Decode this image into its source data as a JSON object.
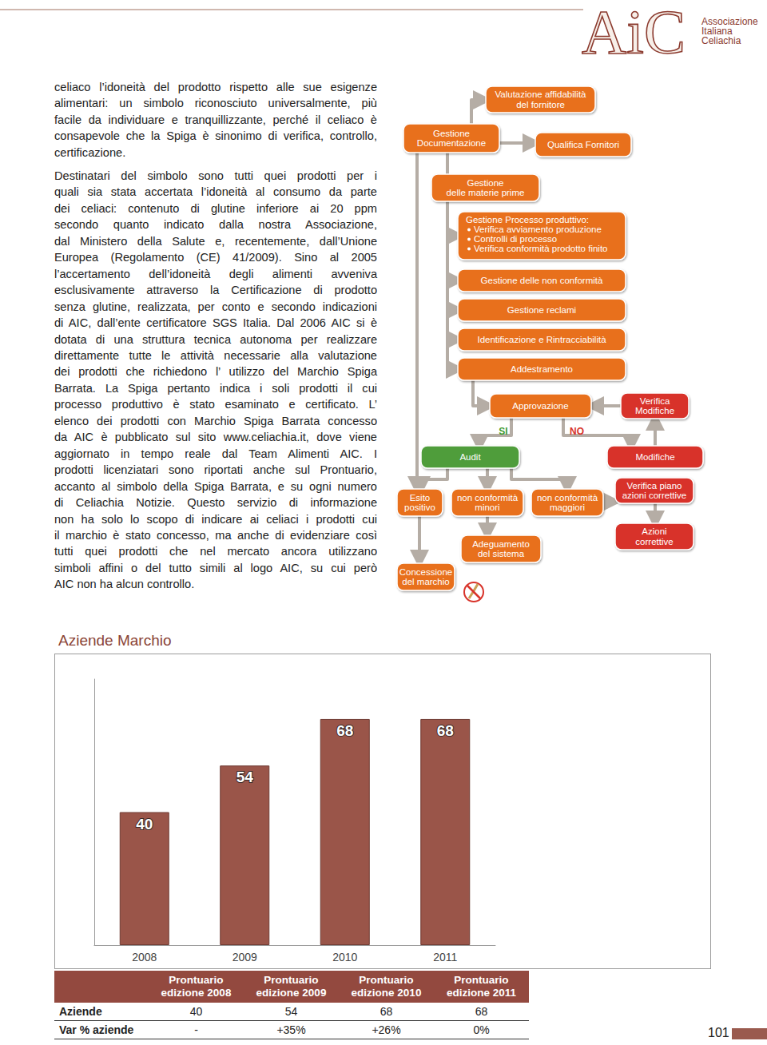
{
  "header": {
    "logo": "AiC",
    "organization": [
      "Associazione",
      "Italiana",
      "Celiachia"
    ]
  },
  "body": {
    "paragraphs": [
      [
        "celiaco l’idoneità del prodotto rispetto alle sue esigenze",
        "alimentari: un simbolo riconosciuto universalmente, più",
        "facile da individuare e tranquillizzante, perché il celiaco è",
        "consapevole che la Spiga è sinonimo di verifica, controllo,",
        "certificazione."
      ],
      [
        "Destinatari del simbolo sono tutti quei prodotti per i",
        "quali sia stata accertata l’idoneità al consumo da parte",
        "dei celiaci: contenuto di glutine inferiore ai 20 ppm",
        "secondo quanto indicato dalla nostra Associazione,",
        "dal Ministero della Salute e, recentemente, dall’Unione",
        "Europea (Regolamento (CE) 41/2009). Sino al 2005",
        "l’accertamento dell’idoneità degli alimenti avveniva",
        "esclusivamente attraverso la Certificazione di prodotto",
        "senza glutine, realizzata, per conto e secondo indicazioni",
        "di AIC, dall’ente certificatore SGS Italia. Dal 2006 AIC si è",
        "dotata di una struttura tecnica autonoma per realizzare",
        "direttamente tutte le attività necessarie alla valutazione",
        "dei prodotti che richiedono l’ utilizzo del Marchio Spiga",
        "Barrata. La Spiga pertanto indica i soli prodotti il cui",
        "processo produttivo è stato esaminato e certificato. L’",
        "elenco dei prodotti con Marchio Spiga Barrata concesso",
        "da AIC è pubblicato sul sito www.celiachia.it, dove viene",
        "aggiornato in tempo reale dal Team Alimenti AIC. I",
        "prodotti licenziatari sono riportati anche sul Prontuario,",
        "accanto al simbolo della Spiga Barrata, e su ogni numero",
        "di Celiachia Notizie. Questo servizio di informazione",
        "non ha solo lo scopo di indicare ai celiaci i prodotti cui",
        "il marchio è stato concesso, ma anche di evidenziare così",
        "tutti quei prodotti che nel mercato ancora utilizzano",
        "simboli affini o del tutto simili al logo AIC, su cui però",
        "AIC non ha alcun controllo."
      ]
    ]
  },
  "diagram": {
    "nodes": [
      {
        "label": [
          "Valutazione affidabilità",
          "del fornitore"
        ],
        "shape": "box",
        "color": "#e8701f"
      },
      {
        "label": [
          "Gestione",
          "Documentazione"
        ],
        "shape": "box",
        "color": "#e8701f"
      },
      {
        "label": [
          "Qualifica Fornitori"
        ],
        "shape": "box",
        "color": "#e8701f"
      },
      {
        "label": [
          "Gestione",
          "delle materie prime"
        ],
        "shape": "box",
        "color": "#e8701f"
      },
      {
        "label": [
          "Gestione Processo produttivo:"
        ],
        "bullets": [
          "Verifica avviamento produzione",
          "Controlli di processo",
          "Verifica conformità prodotto finito"
        ],
        "shape": "box",
        "color": "#e8701f"
      },
      {
        "label": [
          "Gestione delle non conformità"
        ],
        "shape": "box",
        "color": "#e8701f"
      },
      {
        "label": [
          "Gestione reclami"
        ],
        "shape": "box",
        "color": "#e8701f"
      },
      {
        "label": [
          "Identificazione e Rintracciabilità"
        ],
        "shape": "box",
        "color": "#e8701f"
      },
      {
        "label": [
          "Addestramento"
        ],
        "shape": "box",
        "color": "#e8701f"
      },
      {
        "label": [
          "Approvazione"
        ],
        "shape": "box",
        "color": "#e8701f"
      },
      {
        "label": [
          "Verifica",
          "Modifiche"
        ],
        "shape": "box",
        "color": "#d8332a"
      },
      {
        "label": [
          "SI"
        ],
        "shape": "text",
        "color": "#3f9a2e"
      },
      {
        "label": [
          "NO"
        ],
        "shape": "text",
        "color": "#d8332a"
      },
      {
        "label": [
          "Audit"
        ],
        "shape": "box",
        "color": "#4f9d3a"
      },
      {
        "label": [
          "Modifiche"
        ],
        "shape": "box",
        "color": "#d8332a"
      },
      {
        "label": [
          "Esito",
          "positivo"
        ],
        "shape": "box",
        "color": "#e8701f"
      },
      {
        "label": [
          "non conformità",
          "minori"
        ],
        "shape": "box",
        "color": "#e8701f"
      },
      {
        "label": [
          "non conformità",
          "maggiori"
        ],
        "shape": "box",
        "color": "#e8701f"
      },
      {
        "label": [
          "Verifica piano",
          "azioni correttive"
        ],
        "shape": "box",
        "color": "#d8332a"
      },
      {
        "label": [
          "Adeguamento",
          "del sistema"
        ],
        "shape": "box",
        "color": "#e8701f"
      },
      {
        "label": [
          "Azioni",
          "correttive"
        ],
        "shape": "box",
        "color": "#d8332a"
      },
      {
        "label": [
          "Concessione",
          "del marchio"
        ],
        "shape": "box",
        "color": "#e8701f"
      }
    ]
  },
  "chart_data": {
    "type": "bar",
    "title": "Aziende Marchio",
    "categories": [
      "2008",
      "2009",
      "2010",
      "2011"
    ],
    "values": [
      40,
      54,
      68,
      68
    ],
    "color": "#9a5549",
    "ylim": [
      0,
      80
    ],
    "data_labels": true,
    "tick_labels": "x",
    "grid": false
  },
  "table": {
    "header": [
      [],
      [
        "Prontuario",
        "edizione 2008"
      ],
      [
        "Prontuario",
        "edizione 2009"
      ],
      [
        "Prontuario",
        "edizione 2010"
      ],
      [
        "Prontuario",
        "edizione 2011"
      ]
    ],
    "rows": [
      [
        "Aziende",
        "40",
        "54",
        "68",
        "68"
      ],
      [
        "Var % aziende",
        "-",
        "+35%",
        "+26%",
        "0%"
      ]
    ]
  },
  "page_number": "101"
}
